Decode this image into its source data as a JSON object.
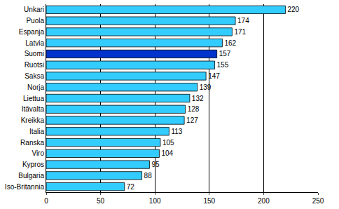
{
  "chart_data": {
    "type": "bar",
    "orientation": "horizontal",
    "categories": [
      "Unkari",
      "Puola",
      "Espanja",
      "Latvia",
      "Suomi",
      "Ruotsi",
      "Saksa",
      "Norja",
      "Liettua",
      "Itävalta",
      "Kreikka",
      "Italia",
      "Ranska",
      "Viro",
      "Kypros",
      "Bulgaria",
      "Iso-Britannia"
    ],
    "values": [
      220,
      174,
      171,
      162,
      157,
      155,
      147,
      139,
      132,
      128,
      127,
      113,
      105,
      104,
      95,
      88,
      72
    ],
    "colors": [
      "#33ccff",
      "#33ccff",
      "#33ccff",
      "#33ccff",
      "#0033cc",
      "#33ccff",
      "#33ccff",
      "#33ccff",
      "#33ccff",
      "#33ccff",
      "#33ccff",
      "#33ccff",
      "#33ccff",
      "#33ccff",
      "#33ccff",
      "#33ccff",
      "#33ccff"
    ],
    "xlim": [
      0,
      250
    ],
    "xticks": [
      0,
      50,
      100,
      150,
      200,
      250
    ],
    "grid": true,
    "data_labels": true
  }
}
